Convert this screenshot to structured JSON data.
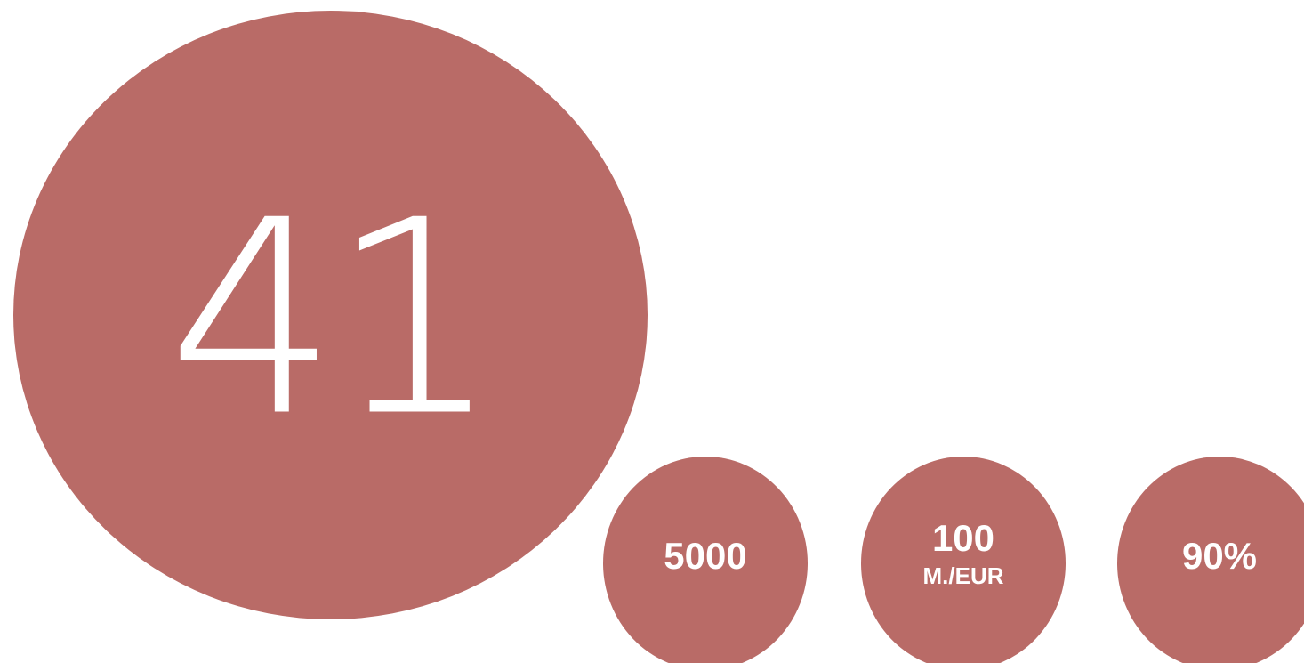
{
  "colors": {
    "circle_fill": "#b96b67",
    "text": "#ffffff",
    "background": "#ffffff"
  },
  "main_stat": {
    "value": "41"
  },
  "stats": [
    {
      "value": "5000",
      "unit": ""
    },
    {
      "value": "100",
      "unit": "M./EUR"
    },
    {
      "value": "90%",
      "unit": ""
    }
  ]
}
